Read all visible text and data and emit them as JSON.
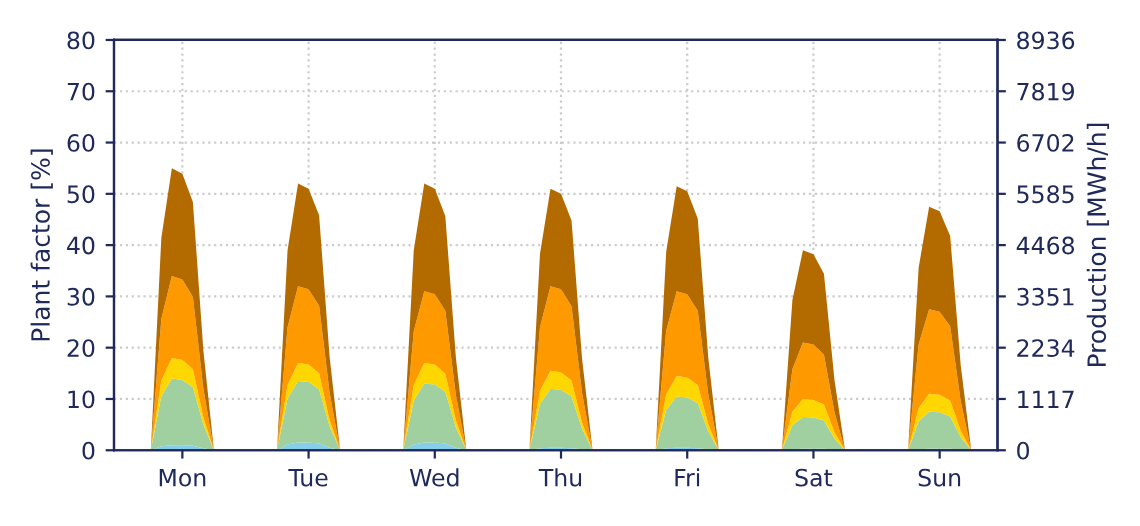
{
  "chart_data": {
    "type": "area",
    "stacked": true,
    "ylabel": "Plant factor [%]",
    "y2label": "Production [MWh/h]",
    "categories": [
      null,
      null,
      null,
      null,
      null,
      null,
      "Mon",
      null,
      null,
      null,
      null,
      null,
      null,
      null,
      null,
      null,
      null,
      null,
      "Tue",
      null,
      null,
      null,
      null,
      null,
      null,
      null,
      null,
      null,
      null,
      null,
      "Wed",
      null,
      null,
      null,
      null,
      null,
      null,
      null,
      null,
      null,
      null,
      null,
      "Thu",
      null,
      null,
      null,
      null,
      null,
      null,
      null,
      null,
      null,
      null,
      null,
      "Fri",
      null,
      null,
      null,
      null,
      null,
      null,
      null,
      null,
      null,
      null,
      null,
      "Sat",
      null,
      null,
      null,
      null,
      null,
      null,
      null,
      null,
      null,
      null,
      null,
      "Sun",
      null,
      null,
      null,
      null,
      null
    ],
    "series": [
      {
        "color": "#87ceeb",
        "values": [
          0,
          0,
          0,
          0,
          0.8,
          1,
          1,
          0.9,
          0.4,
          0,
          0,
          0,
          0,
          0,
          0,
          0,
          1.1,
          1.5,
          1.5,
          1.3,
          0.5,
          0,
          0,
          0,
          0,
          0,
          0,
          0,
          1.1,
          1.5,
          1.5,
          1.3,
          0.5,
          0,
          0,
          0,
          0,
          0,
          0,
          0,
          0.4,
          0.5,
          0.5,
          0.4,
          0.2,
          0,
          0,
          0,
          0,
          0,
          0,
          0,
          0.4,
          0.5,
          0.5,
          0.4,
          0.2,
          0,
          0,
          0,
          0,
          0,
          0,
          0,
          0.2,
          0.3,
          0.3,
          0.3,
          0.1,
          0,
          0,
          0,
          0,
          0,
          0,
          0,
          0.2,
          0.3,
          0.3,
          0.3,
          0.1,
          0,
          0,
          0
        ]
      },
      {
        "color": "#a0cfa0",
        "values": [
          0,
          0,
          0,
          0,
          9.8,
          13,
          12.7,
          11.4,
          4.6,
          0,
          0,
          0,
          0,
          0,
          0,
          0,
          9,
          12,
          11.8,
          10.6,
          4.2,
          0,
          0,
          0,
          0,
          0,
          0,
          0,
          8.6,
          11.5,
          11.3,
          10.1,
          4,
          0,
          0,
          0,
          0,
          0,
          0,
          0,
          8.6,
          11.5,
          11.3,
          10.1,
          4,
          0,
          0,
          0,
          0,
          0,
          0,
          0,
          7.5,
          10,
          9.8,
          8.8,
          3.5,
          0,
          0,
          0,
          0,
          0,
          0,
          0,
          4.7,
          6.2,
          6.1,
          5.5,
          2.2,
          0,
          0,
          0,
          0,
          0,
          0,
          0,
          5.4,
          7.2,
          7.1,
          6.3,
          2.5,
          0,
          0,
          0
        ]
      },
      {
        "color": "#ffd700",
        "values": [
          0,
          0,
          0,
          0,
          3,
          4,
          3.9,
          3.5,
          1.4,
          0,
          0,
          0,
          0,
          0,
          0,
          0,
          2.6,
          3.5,
          3.4,
          3.1,
          1.2,
          0,
          0,
          0,
          0,
          0,
          0,
          0,
          3,
          4,
          3.9,
          3.5,
          1.4,
          0,
          0,
          0,
          0,
          0,
          0,
          0,
          2.6,
          3.5,
          3.4,
          3.1,
          1.2,
          0,
          0,
          0,
          0,
          0,
          0,
          0,
          3,
          4,
          3.9,
          3.5,
          1.4,
          0,
          0,
          0,
          0,
          0,
          0,
          0,
          2.6,
          3.5,
          3.4,
          3.1,
          1.2,
          0,
          0,
          0,
          0,
          0,
          0,
          0,
          2.6,
          3.5,
          3.4,
          3.1,
          1.2,
          0,
          0,
          0
        ]
      },
      {
        "color": "#ff9900",
        "values": [
          0,
          0,
          0,
          0,
          12,
          16,
          15.7,
          14.1,
          5.6,
          0,
          0,
          0,
          0,
          0,
          0,
          0,
          11.3,
          15,
          14.7,
          13.2,
          5.3,
          0,
          0,
          0,
          0,
          0,
          0,
          0,
          10.5,
          14,
          13.7,
          12.3,
          4.9,
          0,
          0,
          0,
          0,
          0,
          0,
          0,
          12.4,
          16.5,
          16.2,
          14.5,
          5.8,
          0,
          0,
          0,
          0,
          0,
          0,
          0,
          12.4,
          16.5,
          16.2,
          14.5,
          5.8,
          0,
          0,
          0,
          0,
          0,
          0,
          0,
          8.3,
          11,
          10.8,
          9.7,
          3.9,
          0,
          0,
          0,
          0,
          0,
          0,
          0,
          12.4,
          16.5,
          16.2,
          14.5,
          5.8,
          0,
          0,
          0
        ]
      },
      {
        "color": "#b36b00",
        "values": [
          0,
          0,
          0,
          0,
          15.8,
          21,
          20.6,
          18.5,
          7.4,
          0,
          0,
          0,
          0,
          0,
          0,
          0,
          15,
          20,
          19.6,
          17.6,
          7,
          0,
          0,
          0,
          0,
          0,
          0,
          0,
          15.8,
          21,
          20.6,
          18.5,
          7.4,
          0,
          0,
          0,
          0,
          0,
          0,
          0,
          14.3,
          19,
          18.6,
          16.7,
          6.7,
          0,
          0,
          0,
          0,
          0,
          0,
          0,
          15.4,
          20.5,
          20.1,
          18,
          7.2,
          0,
          0,
          0,
          0,
          0,
          0,
          0,
          13.5,
          18,
          17.6,
          15.8,
          6.3,
          0,
          0,
          0,
          0,
          0,
          0,
          0,
          15,
          20,
          19.6,
          17.6,
          7,
          0,
          0,
          0
        ]
      }
    ],
    "ylim": [
      0,
      80
    ],
    "yticks": [
      0,
      10,
      20,
      30,
      40,
      50,
      60,
      70,
      80
    ],
    "y2lim": [
      0,
      8936
    ],
    "y2ticks": [
      0,
      1117,
      2234,
      3351,
      4468,
      5585,
      6702,
      7819,
      8936
    ],
    "grid": true
  }
}
